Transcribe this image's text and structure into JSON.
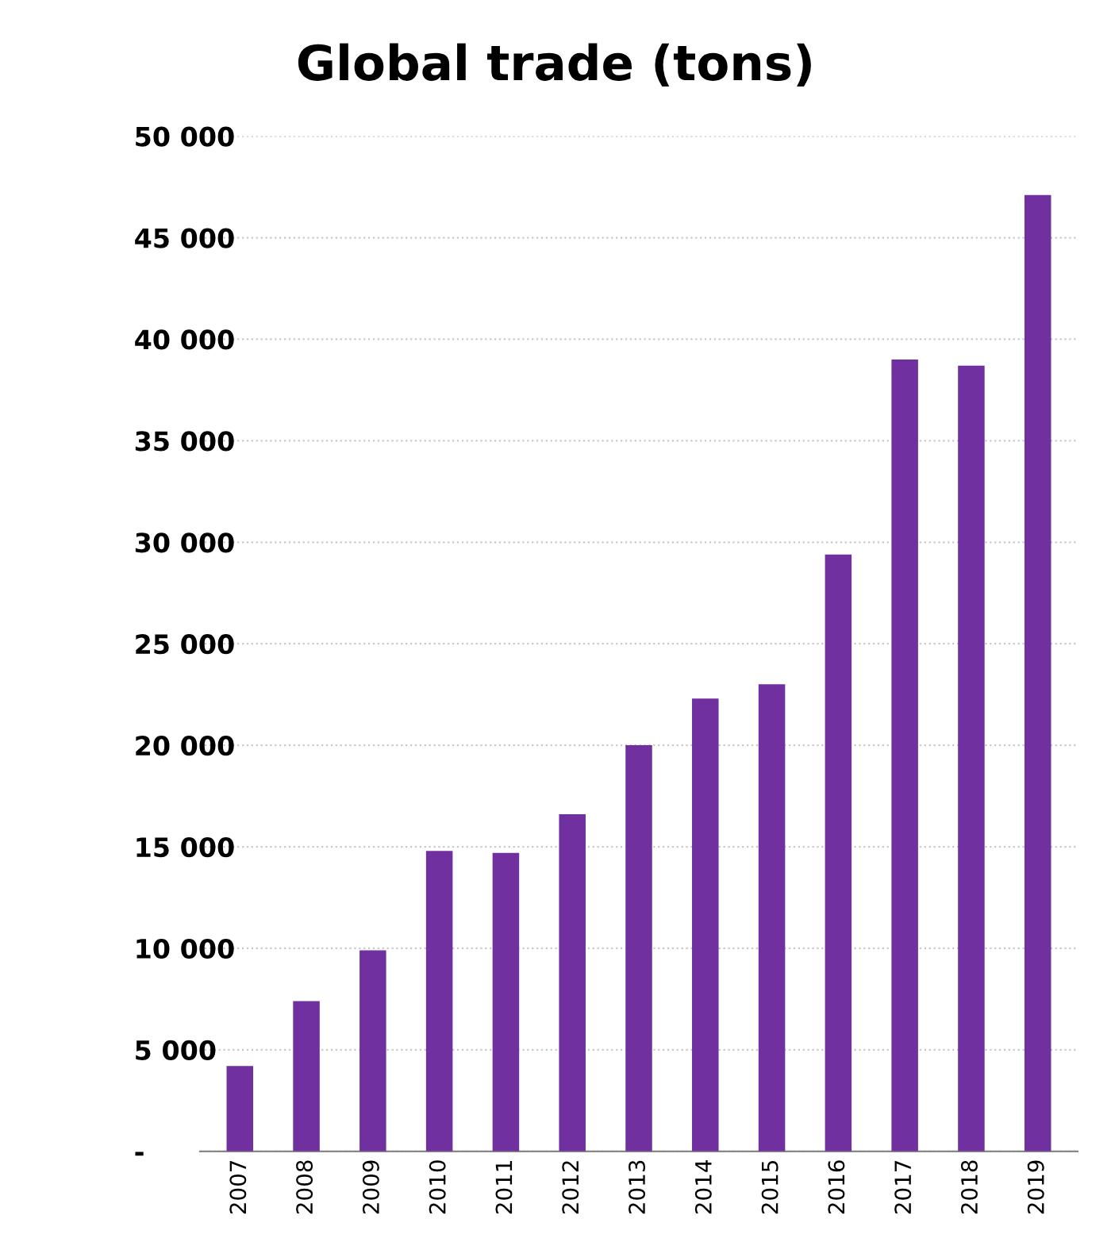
{
  "chart_data": {
    "type": "bar",
    "title": "Global trade (tons)",
    "categories": [
      "2007",
      "2008",
      "2009",
      "2010",
      "2011",
      "2012",
      "2013",
      "2014",
      "2015",
      "2016",
      "2017",
      "2018",
      "2019"
    ],
    "values": [
      4200,
      7400,
      9900,
      14800,
      14700,
      16600,
      20000,
      22300,
      23000,
      29400,
      39000,
      38700,
      47100
    ],
    "color": "#7030a0",
    "ylim": [
      0,
      50000
    ],
    "yticks": [
      {
        "value": 0,
        "label": "-"
      },
      {
        "value": 5000,
        "label": "5 000"
      },
      {
        "value": 10000,
        "label": "10 000"
      },
      {
        "value": 15000,
        "label": "15 000"
      },
      {
        "value": 20000,
        "label": "20 000"
      },
      {
        "value": 25000,
        "label": "25 000"
      },
      {
        "value": 30000,
        "label": "30 000"
      },
      {
        "value": 35000,
        "label": "35 000"
      },
      {
        "value": 40000,
        "label": "40 000"
      },
      {
        "value": 45000,
        "label": "45 000"
      },
      {
        "value": 50000,
        "label": "50 000"
      }
    ],
    "grid": "y",
    "legend": false
  }
}
